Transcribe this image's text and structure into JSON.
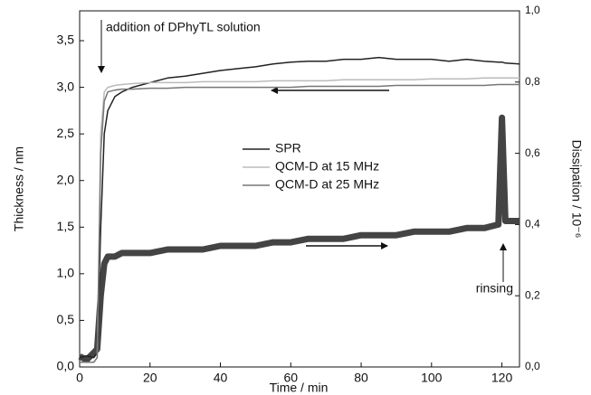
{
  "chart_data": {
    "type": "line",
    "xlabel": "Time / min",
    "ylabel": "Thickness / nm",
    "y2label": "Dissipation / 10⁻⁶",
    "annotations": [
      "addition of DPhyTL solution",
      "rinsing"
    ],
    "x": [
      0,
      2,
      4,
      5,
      6,
      7,
      8,
      10,
      12,
      15,
      20,
      25,
      30,
      35,
      40,
      45,
      50,
      55,
      60,
      65,
      70,
      75,
      80,
      85,
      90,
      95,
      100,
      105,
      110,
      115,
      119,
      120,
      121,
      125
    ],
    "series": [
      {
        "name": "SPR",
        "color": "#222222",
        "values": [
          0.1,
          0.12,
          0.1,
          0.15,
          1.5,
          2.5,
          2.75,
          2.9,
          2.95,
          3.0,
          3.05,
          3.1,
          3.12,
          3.15,
          3.18,
          3.2,
          3.22,
          3.25,
          3.27,
          3.28,
          3.28,
          3.3,
          3.3,
          3.32,
          3.3,
          3.3,
          3.3,
          3.28,
          3.3,
          3.28,
          3.27,
          3.27,
          3.26,
          3.25
        ]
      },
      {
        "name": "QCM-D at 15 MHz",
        "color": "#bbbbbb",
        "values": [
          0.05,
          0.05,
          0.05,
          0.1,
          2.5,
          2.95,
          3.0,
          3.02,
          3.03,
          3.04,
          3.05,
          3.05,
          3.05,
          3.06,
          3.06,
          3.06,
          3.06,
          3.07,
          3.07,
          3.07,
          3.07,
          3.08,
          3.08,
          3.08,
          3.08,
          3.08,
          3.09,
          3.09,
          3.09,
          3.1,
          3.1,
          3.1,
          3.1,
          3.1
        ]
      },
      {
        "name": "QCM-D at 25 MHz",
        "color": "#777777",
        "values": [
          0.05,
          0.05,
          0.05,
          0.1,
          2.3,
          2.85,
          2.95,
          2.97,
          2.98,
          2.98,
          2.99,
          2.99,
          3.0,
          3.0,
          3.0,
          3.0,
          3.0,
          3.0,
          3.0,
          3.01,
          3.01,
          3.01,
          3.01,
          3.01,
          3.02,
          3.02,
          3.02,
          3.02,
          3.02,
          3.02,
          3.03,
          3.03,
          3.03,
          3.03
        ]
      },
      {
        "color": "#444444",
        "axis": "y2",
        "values": [
          0.03,
          0.02,
          0.04,
          0.05,
          0.2,
          0.29,
          0.31,
          0.31,
          0.32,
          0.32,
          0.32,
          0.33,
          0.33,
          0.33,
          0.34,
          0.34,
          0.34,
          0.35,
          0.35,
          0.36,
          0.36,
          0.36,
          0.37,
          0.37,
          0.37,
          0.38,
          0.38,
          0.38,
          0.39,
          0.39,
          0.4,
          0.7,
          0.41,
          0.41
        ]
      }
    ],
    "xlim": [
      0,
      125
    ],
    "xticks": [
      0,
      20,
      40,
      60,
      80,
      100,
      120
    ],
    "ylim": [
      0,
      3.82
    ],
    "yticks": [
      {
        "value": 0,
        "label": "0,0"
      },
      {
        "value": 0.5,
        "label": "0,5"
      },
      {
        "value": 1,
        "label": "1,0"
      },
      {
        "value": 1.5,
        "label": "1,5"
      },
      {
        "value": 2,
        "label": "2,0"
      },
      {
        "value": 2.5,
        "label": "2,5"
      },
      {
        "value": 3,
        "label": "3,0"
      },
      {
        "value": 3.5,
        "label": "3,5"
      }
    ],
    "y2lim": [
      0,
      1
    ],
    "y2ticks": [
      {
        "value": 0,
        "label": "0,0"
      },
      {
        "value": 0.2,
        "label": "0,2"
      },
      {
        "value": 0.4,
        "label": "0,4"
      },
      {
        "value": 0.6,
        "label": "0,6"
      },
      {
        "value": 0.8,
        "label": "0,8"
      },
      {
        "value": 1,
        "label": "1,0"
      }
    ],
    "legend": "center",
    "grid": false
  }
}
